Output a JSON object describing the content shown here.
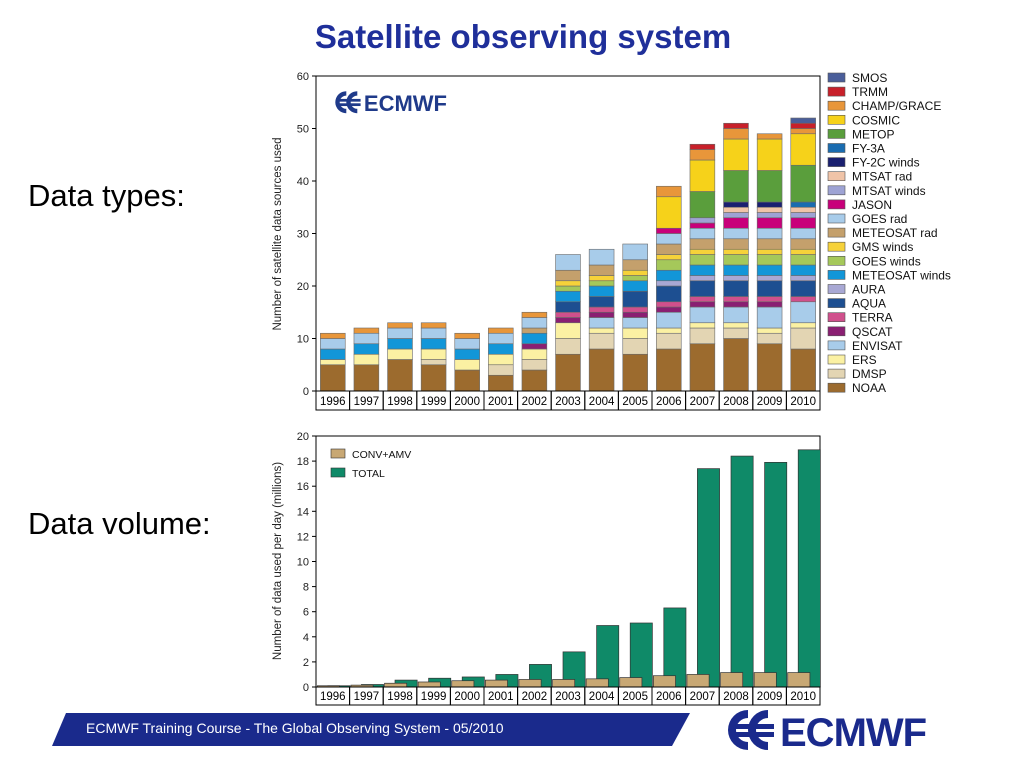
{
  "slide": {
    "title": "Satellite observing system",
    "label_types": "Data types:",
    "label_volume": "Data volume:",
    "footer": "ECMWF Training Course - The Global Observing System - 05/2010",
    "logo_text": "ECMWF"
  },
  "colors": {
    "title": "#1f2f9a",
    "footer_band": "#1a2a8c",
    "conv": "#c8a874",
    "total": "#0f8a68"
  },
  "chart_data": [
    {
      "type": "bar",
      "stacked": true,
      "ylabel": "Number of satellite data sources used",
      "ylim": [
        0,
        60
      ],
      "yticks": [
        0,
        10,
        20,
        30,
        40,
        50,
        60
      ],
      "categories": [
        "1996",
        "1997",
        "1998",
        "1999",
        "2000",
        "2001",
        "2002",
        "2003",
        "2004",
        "2005",
        "2006",
        "2007",
        "2008",
        "2009",
        "2010"
      ],
      "logo": "ECMWF",
      "legend_position": "right",
      "series": [
        {
          "name": "NOAA",
          "color": "#9c6b2e",
          "values": [
            5,
            5,
            6,
            5,
            4,
            3,
            4,
            7,
            8,
            7,
            8,
            9,
            10,
            9,
            8
          ]
        },
        {
          "name": "DMSP",
          "color": "#e3d5b3",
          "values": [
            0,
            0,
            0,
            1,
            0,
            2,
            2,
            3,
            3,
            3,
            3,
            3,
            2,
            2,
            4
          ]
        },
        {
          "name": "ERS",
          "color": "#fbf1a3",
          "values": [
            1,
            2,
            2,
            2,
            2,
            2,
            2,
            3,
            1,
            2,
            1,
            1,
            1,
            1,
            1
          ]
        },
        {
          "name": "ENVISAT",
          "color": "#a8ccea",
          "values": [
            0,
            0,
            0,
            0,
            0,
            0,
            0,
            0,
            2,
            2,
            3,
            3,
            3,
            4,
            4
          ]
        },
        {
          "name": "QSCAT",
          "color": "#8a1f72",
          "values": [
            0,
            0,
            0,
            0,
            0,
            0,
            1,
            1,
            1,
            1,
            1,
            1,
            1,
            1,
            0
          ]
        },
        {
          "name": "TERRA",
          "color": "#d0508c",
          "values": [
            0,
            0,
            0,
            0,
            0,
            0,
            0,
            1,
            1,
            1,
            1,
            1,
            1,
            1,
            1
          ]
        },
        {
          "name": "AQUA",
          "color": "#1d4f91",
          "values": [
            0,
            0,
            0,
            0,
            0,
            0,
            0,
            2,
            2,
            3,
            3,
            3,
            3,
            3,
            3
          ]
        },
        {
          "name": "AURA",
          "color": "#a8a8d4",
          "values": [
            0,
            0,
            0,
            0,
            0,
            0,
            0,
            0,
            0,
            0,
            1,
            1,
            1,
            1,
            1
          ]
        },
        {
          "name": "METEOSAT winds",
          "color": "#1296d8",
          "values": [
            2,
            2,
            2,
            2,
            2,
            2,
            2,
            2,
            2,
            2,
            2,
            2,
            2,
            2,
            2
          ]
        },
        {
          "name": "GOES winds",
          "color": "#a5c85a",
          "values": [
            0,
            0,
            0,
            0,
            0,
            0,
            0,
            1,
            1,
            1,
            2,
            2,
            2,
            2,
            2
          ]
        },
        {
          "name": "GMS winds",
          "color": "#f6d23a",
          "values": [
            0,
            0,
            0,
            0,
            0,
            0,
            0,
            1,
            1,
            1,
            1,
            1,
            1,
            1,
            1
          ]
        },
        {
          "name": "METEOSAT rad",
          "color": "#c4a06c",
          "values": [
            0,
            0,
            0,
            0,
            0,
            0,
            1,
            2,
            2,
            2,
            2,
            2,
            2,
            2,
            2
          ]
        },
        {
          "name": "GOES rad",
          "color": "#a8ccea",
          "values": [
            2,
            2,
            2,
            2,
            2,
            2,
            2,
            3,
            3,
            3,
            2,
            2,
            2,
            2,
            2
          ]
        },
        {
          "name": "JASON",
          "color": "#c8007a",
          "values": [
            0,
            0,
            0,
            0,
            0,
            0,
            0,
            0,
            0,
            0,
            1,
            1,
            2,
            2,
            2
          ]
        },
        {
          "name": "MTSAT winds",
          "color": "#9ea3d4",
          "values": [
            0,
            0,
            0,
            0,
            0,
            0,
            0,
            0,
            0,
            0,
            0,
            1,
            1,
            1,
            1
          ]
        },
        {
          "name": "MTSAT rad",
          "color": "#f0c4a8",
          "values": [
            0,
            0,
            0,
            0,
            0,
            0,
            0,
            0,
            0,
            0,
            0,
            0,
            1,
            1,
            1
          ]
        },
        {
          "name": "FY-2C winds",
          "color": "#1a2070",
          "values": [
            0,
            0,
            0,
            0,
            0,
            0,
            0,
            0,
            0,
            0,
            0,
            0,
            1,
            1,
            0
          ]
        },
        {
          "name": "FY-3A",
          "color": "#1a6cb0",
          "values": [
            0,
            0,
            0,
            0,
            0,
            0,
            0,
            0,
            0,
            0,
            0,
            0,
            0,
            0,
            1
          ]
        },
        {
          "name": "METOP",
          "color": "#5a9e3c",
          "values": [
            0,
            0,
            0,
            0,
            0,
            0,
            0,
            0,
            0,
            0,
            0,
            5,
            6,
            6,
            7
          ]
        },
        {
          "name": "COSMIC",
          "color": "#f6d21a",
          "values": [
            0,
            0,
            0,
            0,
            0,
            0,
            0,
            0,
            0,
            0,
            6,
            6,
            6,
            6,
            6
          ]
        },
        {
          "name": "CHAMP/GRACE",
          "color": "#e8963a",
          "values": [
            1,
            1,
            1,
            1,
            1,
            1,
            1,
            0,
            0,
            0,
            2,
            2,
            2,
            1,
            1
          ]
        },
        {
          "name": "TRMM",
          "color": "#c8202a",
          "values": [
            0,
            0,
            0,
            0,
            0,
            0,
            0,
            0,
            0,
            0,
            0,
            1,
            1,
            0,
            1
          ]
        },
        {
          "name": "SMOS",
          "color": "#4a5e9a",
          "values": [
            0,
            0,
            0,
            0,
            0,
            0,
            0,
            0,
            0,
            0,
            0,
            0,
            0,
            0,
            1
          ]
        }
      ]
    },
    {
      "type": "bar",
      "ylabel": "Number of data used per day (millions)",
      "ylim": [
        0,
        20
      ],
      "yticks": [
        0,
        2,
        4,
        6,
        8,
        10,
        12,
        14,
        16,
        18,
        20
      ],
      "categories": [
        "1996",
        "1997",
        "1998",
        "1999",
        "2000",
        "2001",
        "2002",
        "2003",
        "2004",
        "2005",
        "2006",
        "2007",
        "2008",
        "2009",
        "2010"
      ],
      "legend_position": "top-left",
      "series": [
        {
          "name": "CONV+AMV",
          "color": "#c8a874",
          "values": [
            0.1,
            0.15,
            0.3,
            0.4,
            0.5,
            0.55,
            0.6,
            0.6,
            0.65,
            0.75,
            0.9,
            1.0,
            1.15,
            1.15,
            1.15
          ]
        },
        {
          "name": "TOTAL",
          "color": "#0f8a68",
          "values": [
            0.1,
            0.2,
            0.55,
            0.7,
            0.8,
            1.0,
            1.8,
            2.8,
            4.9,
            5.1,
            6.3,
            17.4,
            18.4,
            17.9,
            18.9
          ]
        }
      ]
    }
  ]
}
